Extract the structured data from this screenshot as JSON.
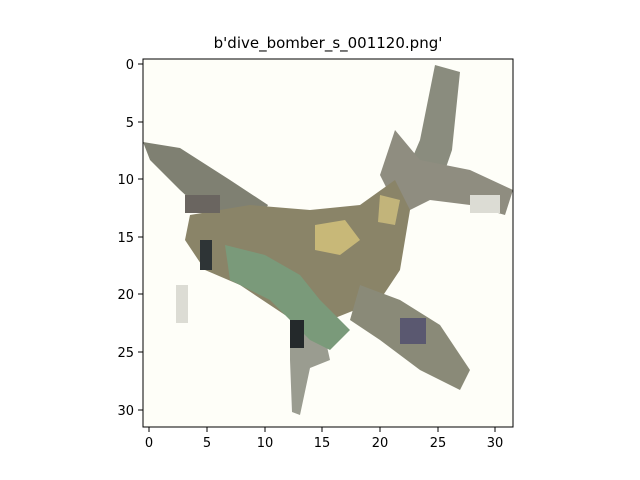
{
  "title": "b'dive_bomber_s_001120.png'",
  "image": {
    "subject": "small aircraft / dive bomber (low-resolution pixelated photo)",
    "grid": "32x32",
    "background_color": "#fefef8",
    "palette": {
      "body": "#8a8a78",
      "body_light": "#b8b4a0",
      "wing_dark": "#6e6e64",
      "shadow": "#3a3f42",
      "highlight": "#c8b878",
      "green": "#7a9a7a",
      "purple": "#5a5870",
      "faint": "#dcdcd4"
    }
  },
  "axes": {
    "x_ticks": [
      "0",
      "5",
      "10",
      "15",
      "20",
      "25",
      "30"
    ],
    "y_ticks": [
      "0",
      "5",
      "10",
      "15",
      "20",
      "25",
      "30"
    ]
  }
}
